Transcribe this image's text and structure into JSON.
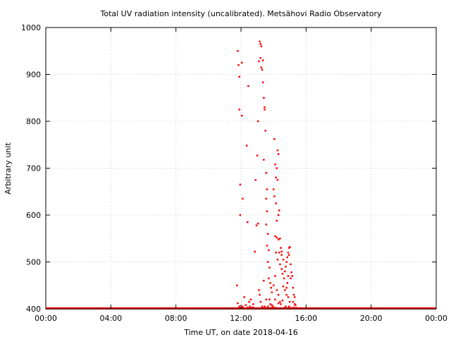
{
  "chart_data": {
    "type": "scatter",
    "title": "Total UV radiation intensity (uncalibrated). Metsähovi Radio Observatory",
    "xlabel": "Time UT, on date 2018-04-16",
    "ylabel": "Arbitrary unit",
    "xlim": [
      0,
      24
    ],
    "ylim": [
      400,
      1000
    ],
    "x_ticks": [
      0,
      4,
      8,
      12,
      16,
      20,
      24
    ],
    "x_tick_labels": [
      "00:00",
      "04:00",
      "08:00",
      "12:00",
      "16:00",
      "20:00",
      "00:00"
    ],
    "y_ticks": [
      400,
      500,
      600,
      700,
      800,
      900,
      1000
    ],
    "y_tick_labels": [
      "400",
      "500",
      "600",
      "700",
      "800",
      "900",
      "1000"
    ],
    "grid": true,
    "colors": {
      "points": "#ff0000",
      "grid": "#c8c8c8",
      "frame": "#000000"
    },
    "baseline": {
      "x_start": 0.0,
      "x_end": 24.0,
      "y": 401
    },
    "series": [
      {
        "points": [
          [
            11.8,
            950
          ],
          [
            11.85,
            920
          ],
          [
            12.05,
            925
          ],
          [
            11.9,
            895
          ],
          [
            11.9,
            825
          ],
          [
            12.05,
            812
          ],
          [
            11.95,
            665
          ],
          [
            12.1,
            635
          ],
          [
            11.95,
            600
          ],
          [
            12.35,
            748
          ],
          [
            12.45,
            875
          ],
          [
            12.4,
            585
          ],
          [
            11.75,
            450
          ],
          [
            11.8,
            412
          ],
          [
            11.9,
            405
          ],
          [
            12.0,
            402
          ],
          [
            12.1,
            405
          ],
          [
            12.2,
            425
          ],
          [
            12.3,
            408
          ],
          [
            12.4,
            403
          ],
          [
            12.5,
            415
          ],
          [
            12.55,
            405
          ],
          [
            12.6,
            420
          ],
          [
            12.7,
            403
          ],
          [
            12.75,
            410
          ],
          [
            12.8,
            402
          ],
          [
            12.85,
            522
          ],
          [
            12.9,
            675
          ],
          [
            13.0,
            727
          ],
          [
            12.95,
            578
          ],
          [
            13.05,
            582
          ],
          [
            13.05,
            800
          ],
          [
            13.1,
            928
          ],
          [
            13.15,
            970
          ],
          [
            13.2,
            965
          ],
          [
            13.25,
            960
          ],
          [
            13.2,
            935
          ],
          [
            13.25,
            915
          ],
          [
            13.3,
            910
          ],
          [
            13.35,
            930
          ],
          [
            13.35,
            883
          ],
          [
            13.4,
            850
          ],
          [
            13.45,
            830
          ],
          [
            13.45,
            825
          ],
          [
            13.5,
            780
          ],
          [
            13.4,
            718
          ],
          [
            13.55,
            690
          ],
          [
            13.6,
            655
          ],
          [
            13.55,
            635
          ],
          [
            13.6,
            608
          ],
          [
            13.55,
            580
          ],
          [
            13.65,
            560
          ],
          [
            13.6,
            535
          ],
          [
            13.7,
            525
          ],
          [
            13.65,
            500
          ],
          [
            13.75,
            488
          ],
          [
            13.7,
            465
          ],
          [
            13.8,
            455
          ],
          [
            13.85,
            445
          ],
          [
            13.9,
            435
          ],
          [
            13.75,
            420
          ],
          [
            13.8,
            410
          ],
          [
            13.85,
            402
          ],
          [
            13.95,
            405
          ],
          [
            14.0,
            402
          ],
          [
            13.1,
            440
          ],
          [
            13.15,
            430
          ],
          [
            13.2,
            415
          ],
          [
            13.3,
            405
          ],
          [
            13.4,
            460
          ],
          [
            13.45,
            405
          ],
          [
            13.55,
            420
          ],
          [
            13.65,
            405
          ],
          [
            14.05,
            762
          ],
          [
            14.1,
            708
          ],
          [
            14.2,
            700
          ],
          [
            14.25,
            738
          ],
          [
            14.3,
            730
          ],
          [
            14.15,
            680
          ],
          [
            14.25,
            675
          ],
          [
            14.0,
            655
          ],
          [
            14.05,
            640
          ],
          [
            14.15,
            625
          ],
          [
            14.35,
            610
          ],
          [
            14.3,
            600
          ],
          [
            14.2,
            588
          ],
          [
            14.1,
            555
          ],
          [
            14.2,
            552
          ],
          [
            14.3,
            548
          ],
          [
            14.4,
            550
          ],
          [
            14.45,
            530
          ],
          [
            14.5,
            522
          ],
          [
            14.35,
            520
          ],
          [
            14.5,
            515
          ],
          [
            14.6,
            505
          ],
          [
            14.15,
            520
          ],
          [
            14.25,
            505
          ],
          [
            14.4,
            495
          ],
          [
            14.5,
            485
          ],
          [
            14.55,
            475
          ],
          [
            14.65,
            465
          ],
          [
            14.7,
            480
          ],
          [
            14.75,
            490
          ],
          [
            14.8,
            500
          ],
          [
            14.85,
            510
          ],
          [
            14.9,
            520
          ],
          [
            14.95,
            530
          ],
          [
            15.0,
            532
          ],
          [
            14.95,
            515
          ],
          [
            15.05,
            495
          ],
          [
            15.1,
            478
          ],
          [
            15.05,
            465
          ],
          [
            14.9,
            470
          ],
          [
            14.85,
            455
          ],
          [
            14.8,
            445
          ],
          [
            15.15,
            470
          ],
          [
            15.2,
            445
          ],
          [
            15.25,
            430
          ],
          [
            15.3,
            425
          ],
          [
            15.2,
            415
          ],
          [
            15.35,
            408
          ],
          [
            15.4,
            402
          ],
          [
            15.3,
            410
          ],
          [
            15.25,
            403
          ],
          [
            14.6,
            448
          ],
          [
            14.7,
            440
          ],
          [
            14.8,
            430
          ],
          [
            14.9,
            425
          ],
          [
            15.0,
            415
          ],
          [
            14.45,
            410
          ],
          [
            14.55,
            418
          ],
          [
            14.65,
            402
          ],
          [
            14.75,
            405
          ],
          [
            14.95,
            405
          ],
          [
            15.1,
            402
          ],
          [
            14.3,
            430
          ],
          [
            14.4,
            415
          ],
          [
            14.1,
            470
          ],
          [
            14.0,
            450
          ],
          [
            14.2,
            440
          ],
          [
            14.1,
            420
          ],
          [
            14.3,
            412
          ],
          [
            14.0,
            403
          ],
          [
            13.9,
            408
          ],
          [
            14.15,
            402
          ]
        ]
      }
    ]
  }
}
